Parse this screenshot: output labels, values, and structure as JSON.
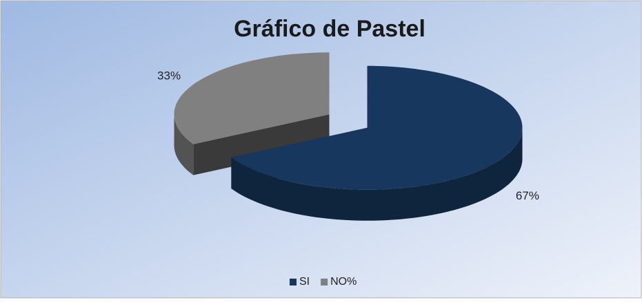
{
  "chart_data": {
    "type": "pie",
    "title": "Gráfico de Pastel",
    "categories": [
      "SI",
      "NO%"
    ],
    "values": [
      67,
      33
    ],
    "value_labels": [
      "67%",
      "33%"
    ],
    "colors": [
      "#17375e",
      "#808080"
    ],
    "legend": "bottom"
  }
}
